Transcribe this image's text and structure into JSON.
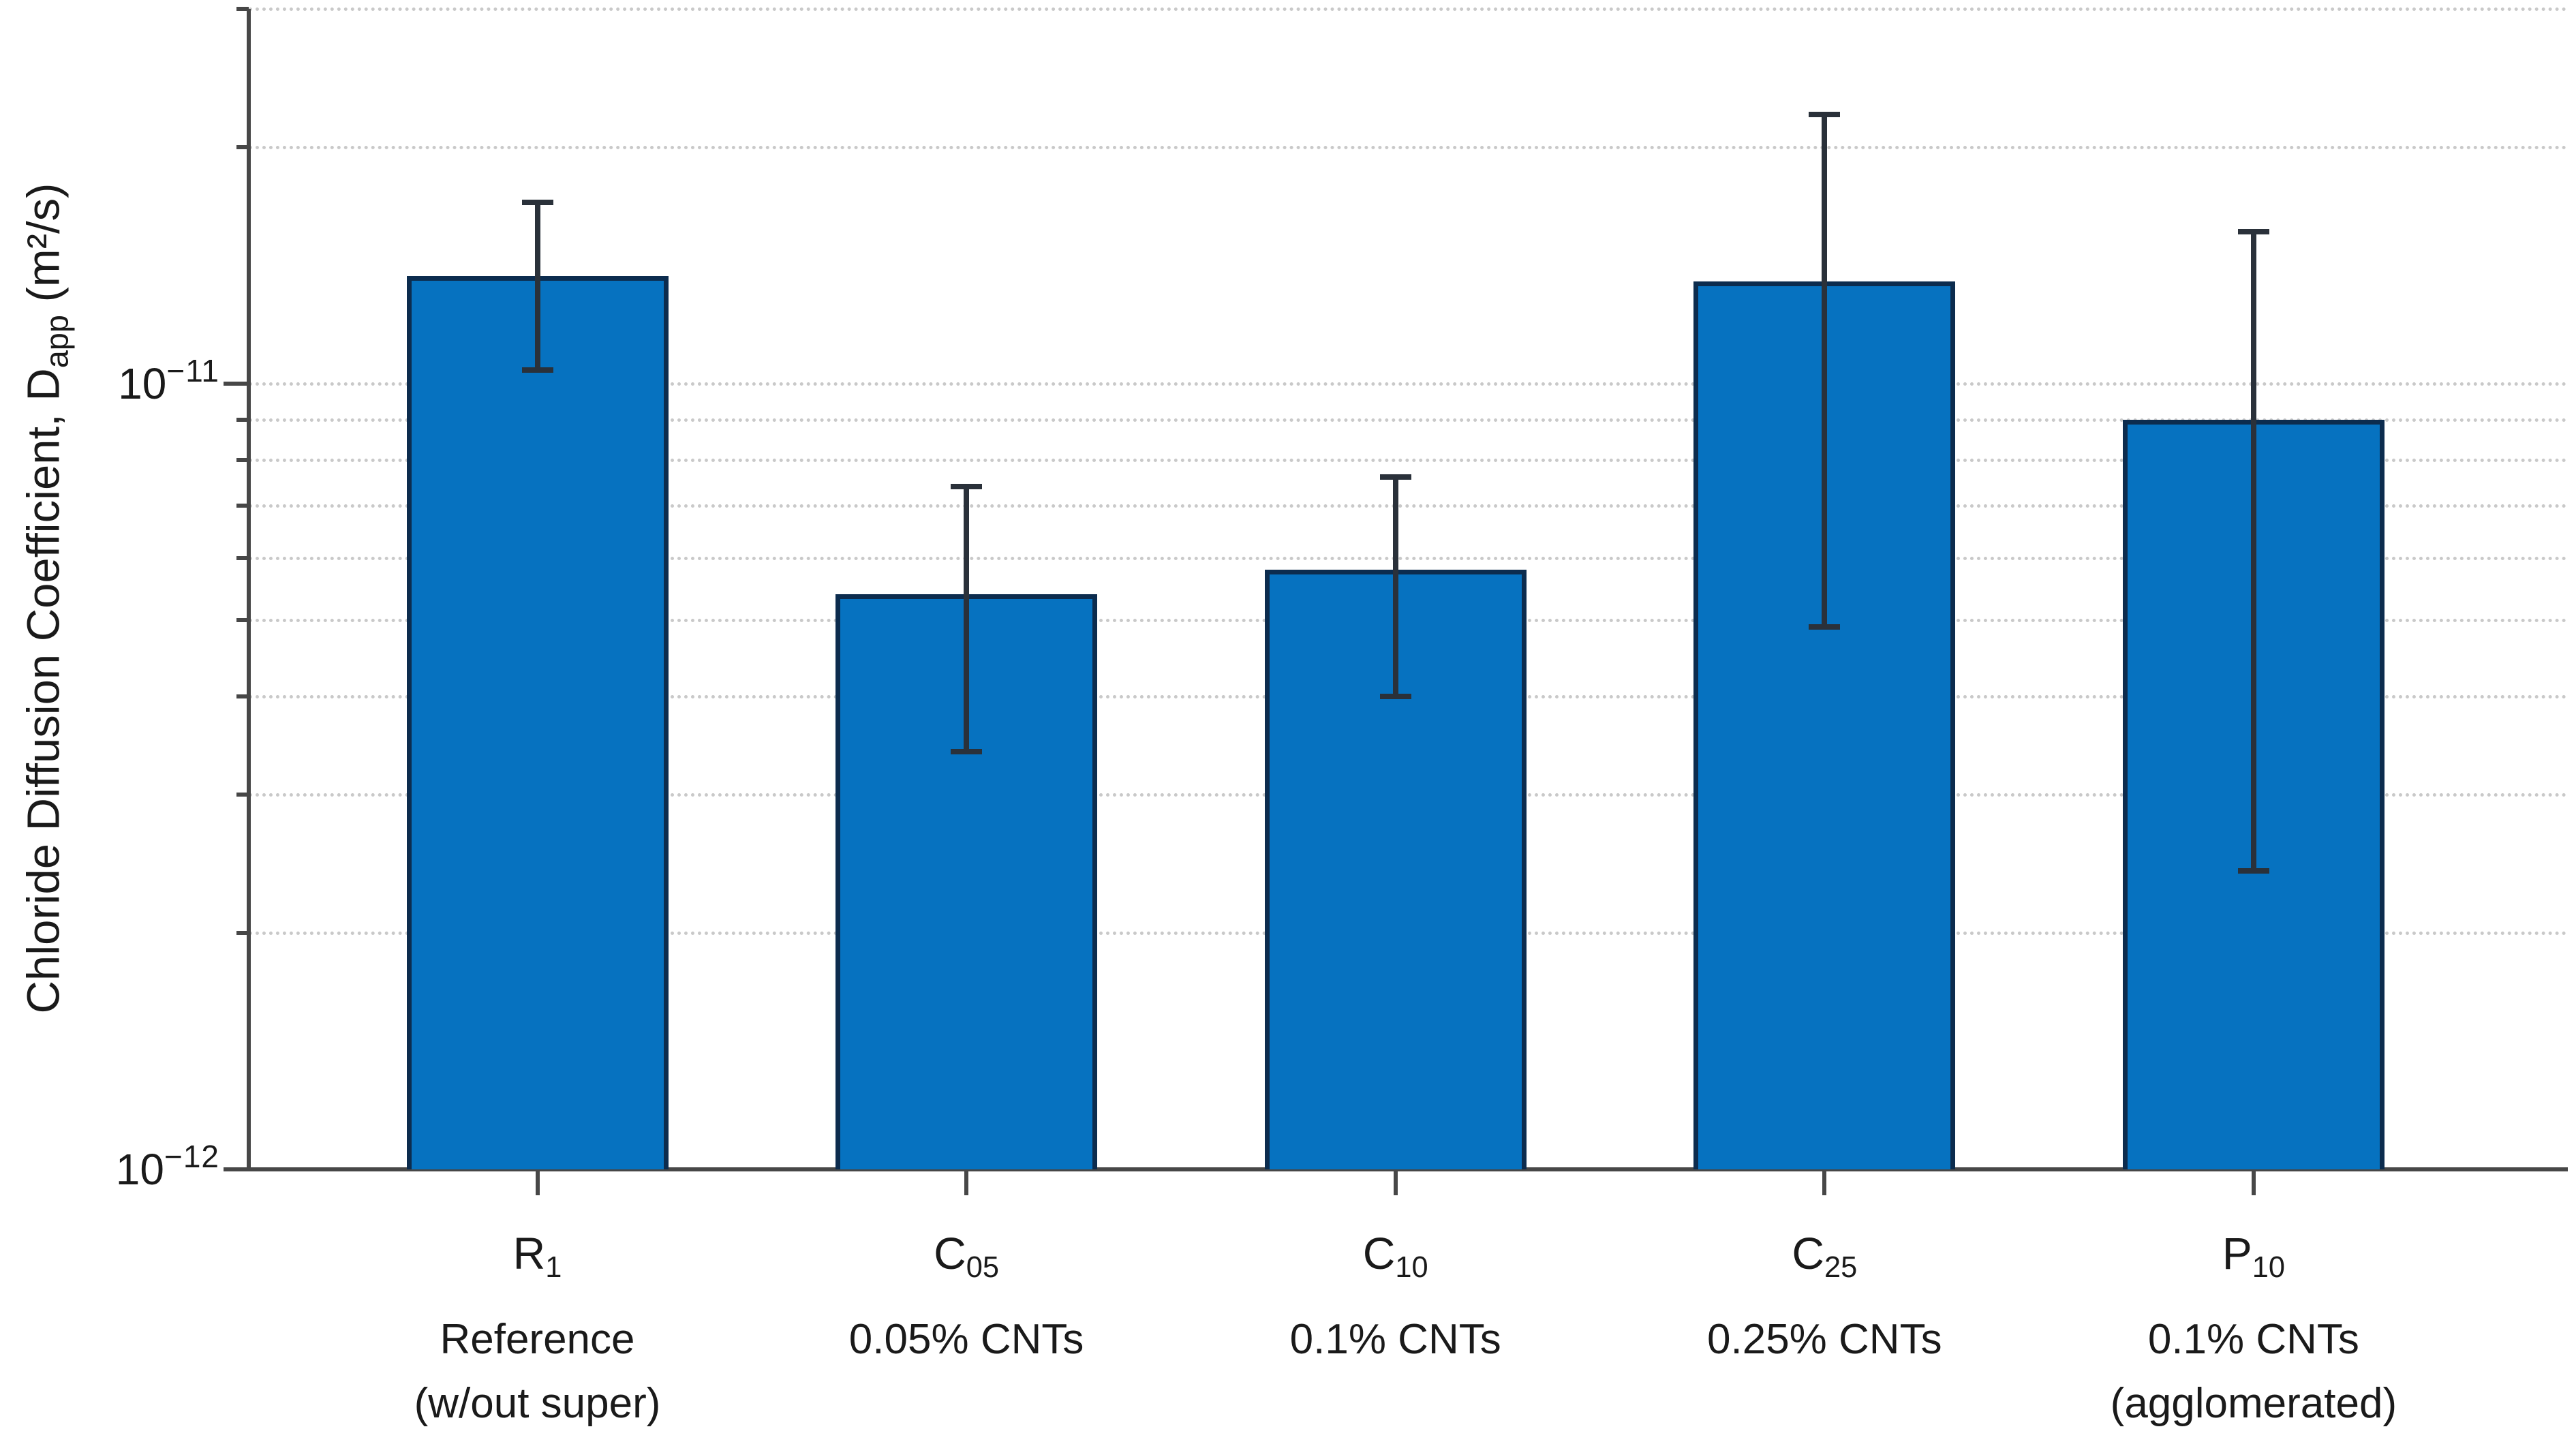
{
  "chart_data": {
    "type": "bar",
    "title": "",
    "xlabel": "",
    "ylabel": {
      "pre": "Chloride Diffusion Coefficient, D",
      "sub": "app",
      "post": " (m²/s)"
    },
    "y_axis": {
      "scale": "log",
      "unit": "m²/s",
      "ylim": [
        1e-12,
        3e-11
      ],
      "grid": "dotted",
      "major_ticks": [
        {
          "value": 1e-12,
          "label_base": "10",
          "label_exp": "−12"
        },
        {
          "value": 1e-11,
          "label_base": "10",
          "label_exp": "−11"
        }
      ],
      "major_gridlines": [
        1e-11
      ],
      "minor_gridlines": [
        2e-12,
        3e-12,
        4e-12,
        5e-12,
        6e-12,
        7e-12,
        8e-12,
        9e-12,
        2e-11,
        3e-11
      ]
    },
    "categories": [
      {
        "symbol": "R",
        "symbol_sub": "1",
        "desc_lines": [
          "Reference",
          "(w/out super)"
        ],
        "value": 1.37e-11,
        "err_high": 1.7e-11,
        "err_low": 1.04e-11
      },
      {
        "symbol": "C",
        "symbol_sub": "05",
        "desc_lines": [
          "0.05% CNTs"
        ],
        "value": 5.4e-12,
        "err_high": 7.4e-12,
        "err_low": 3.4e-12
      },
      {
        "symbol": "C",
        "symbol_sub": "10",
        "desc_lines": [
          "0.1% CNTs"
        ],
        "value": 5.8e-12,
        "err_high": 7.6e-12,
        "err_low": 4e-12
      },
      {
        "symbol": "C",
        "symbol_sub": "25",
        "desc_lines": [
          "0.25% CNTs"
        ],
        "value": 1.35e-11,
        "err_high": 2.2e-11,
        "err_low": 4.9e-12
      },
      {
        "symbol": "P",
        "symbol_sub": "10",
        "desc_lines": [
          "0.1% CNTs",
          "(agglomerated)"
        ],
        "value": 9e-12,
        "err_high": 1.56e-11,
        "err_low": 2.4e-12
      }
    ],
    "legend": "none",
    "bar_color": "#0672C0",
    "bar_edge_color": "#0C2C4E",
    "error_color": "#2A313A",
    "grid_color": "#C9C9C9",
    "axis_color": "#474747",
    "text_color": "#1A1A1A"
  }
}
